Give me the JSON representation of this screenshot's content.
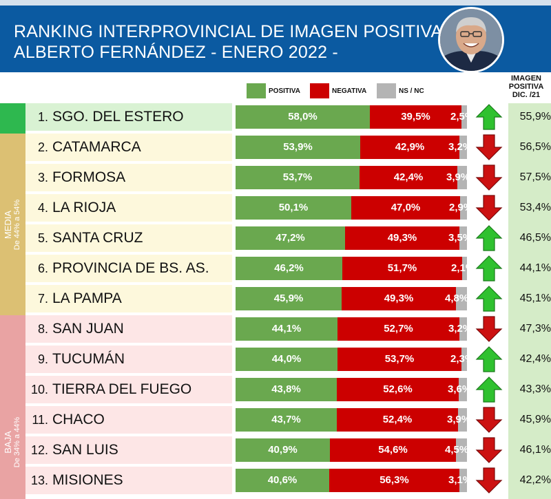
{
  "header": {
    "title_line1": "RANKING INTERPROVINCIAL DE IMAGEN POSITIVA",
    "title_line2": "ALBERTO FERNÁNDEZ  - ENERO 2022 -"
  },
  "legend": {
    "positiva": "POSITIVA",
    "negativa": "NEGATIVA",
    "nsnc": "NS / NC"
  },
  "prev_header": {
    "line1": "IMAGEN",
    "line2": "POSITIVA",
    "line3": "DIC. /21"
  },
  "categories": {
    "media": {
      "name": "MEDIA",
      "range": "De 44% a 54%"
    },
    "baja": {
      "name": "BAJA",
      "range": "De 34% a 44%"
    }
  },
  "colors": {
    "positiva": "#6aa84f",
    "negativa": "#cc0000",
    "nsnc": "#b4b4b4",
    "header_bg": "#0b5aa1",
    "alta_band": "#2eb84f",
    "media_band": "#dcc073",
    "baja_band": "#e9a3a3",
    "arrow_up": "#2fc12f",
    "arrow_down": "#cc1111"
  },
  "chart_data": {
    "type": "bar",
    "stacked": true,
    "series": [
      {
        "name": "POSITIVA",
        "values": [
          58.0,
          53.9,
          53.7,
          50.1,
          47.2,
          46.2,
          45.9,
          44.1,
          44.0,
          43.8,
          43.7,
          40.9,
          40.6
        ]
      },
      {
        "name": "NEGATIVA",
        "values": [
          39.5,
          42.9,
          42.4,
          47.0,
          49.3,
          51.7,
          49.3,
          52.7,
          53.7,
          52.6,
          52.4,
          54.6,
          56.3
        ]
      },
      {
        "name": "NS / NC",
        "values": [
          2.5,
          3.2,
          3.9,
          2.9,
          3.5,
          2.1,
          4.8,
          3.2,
          2.3,
          3.6,
          3.9,
          4.5,
          3.1
        ]
      }
    ],
    "rows": [
      {
        "rank": "1.",
        "province": "SGO. DEL ESTERO",
        "positiva": "58,0%",
        "negativa": "39,5%",
        "nsnc": "2,5%",
        "trend": "up",
        "prev": "55,9%"
      },
      {
        "rank": "2.",
        "province": "CATAMARCA",
        "positiva": "53,9%",
        "negativa": "42,9%",
        "nsnc": "3,2%",
        "trend": "down",
        "prev": "56,5%"
      },
      {
        "rank": "3.",
        "province": "FORMOSA",
        "positiva": "53,7%",
        "negativa": "42,4%",
        "nsnc": "3,9%",
        "trend": "down",
        "prev": "57,5%"
      },
      {
        "rank": "4.",
        "province": "LA RIOJA",
        "positiva": "50,1%",
        "negativa": "47,0%",
        "nsnc": "2,9%",
        "trend": "down",
        "prev": "53,4%"
      },
      {
        "rank": "5.",
        "province": "SANTA CRUZ",
        "positiva": "47,2%",
        "negativa": "49,3%",
        "nsnc": "3,5%",
        "trend": "up",
        "prev": "46,5%"
      },
      {
        "rank": "6.",
        "province": "PROVINCIA DE BS. AS.",
        "positiva": "46,2%",
        "negativa": "51,7%",
        "nsnc": "2,1%",
        "trend": "up",
        "prev": "44,1%"
      },
      {
        "rank": "7.",
        "province": "LA PAMPA",
        "positiva": "45,9%",
        "negativa": "49,3%",
        "nsnc": "4,8%",
        "trend": "up",
        "prev": "45,1%"
      },
      {
        "rank": "8.",
        "province": "SAN JUAN",
        "positiva": "44,1%",
        "negativa": "52,7%",
        "nsnc": "3,2%",
        "trend": "down",
        "prev": "47,3%"
      },
      {
        "rank": "9.",
        "province": "TUCUMÁN",
        "positiva": "44,0%",
        "negativa": "53,7%",
        "nsnc": "2,3%",
        "trend": "up",
        "prev": "42,4%"
      },
      {
        "rank": "10.",
        "province": "TIERRA DEL FUEGO",
        "positiva": "43,8%",
        "negativa": "52,6%",
        "nsnc": "3,6%",
        "trend": "up",
        "prev": "43,3%"
      },
      {
        "rank": "11.",
        "province": "CHACO",
        "positiva": "43,7%",
        "negativa": "52,4%",
        "nsnc": "3,9%",
        "trend": "down",
        "prev": "45,9%"
      },
      {
        "rank": "12.",
        "province": "SAN LUIS",
        "positiva": "40,9%",
        "negativa": "54,6%",
        "nsnc": "4,5%",
        "trend": "down",
        "prev": "46,1%"
      },
      {
        "rank": "13.",
        "province": "MISIONES",
        "positiva": "40,6%",
        "negativa": "56,3%",
        "nsnc": "3,1%",
        "trend": "down",
        "prev": "42,2%"
      }
    ]
  }
}
